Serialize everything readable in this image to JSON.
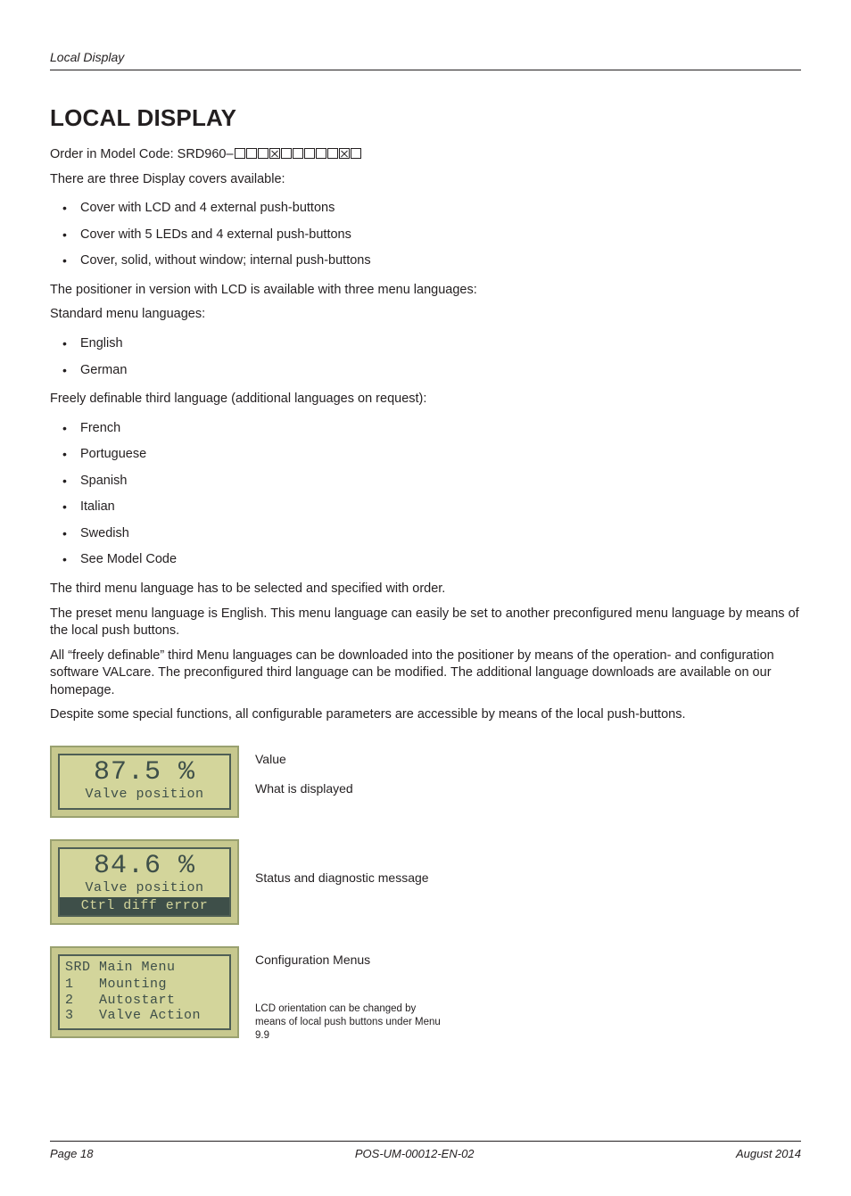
{
  "running_head": "Local Display",
  "title": "LOCAL DISPLAY",
  "order_line_prefix": "Order in Model Code: SRD960–",
  "order_code_pattern": [
    "b",
    "b",
    "b",
    "x",
    "b",
    "b",
    "b",
    "b",
    "b",
    "x",
    "b"
  ],
  "intro_line": "There are three Display covers available:",
  "covers": [
    "Cover with LCD and 4 external push-buttons",
    "Cover with 5 LEDs and 4 external push-buttons",
    "Cover, solid, without window; internal push-buttons"
  ],
  "lcd_langs_intro": "The positioner in version with LCD is available with three menu languages:",
  "std_langs_label": "Standard menu languages:",
  "std_langs": [
    "English",
    "German"
  ],
  "third_lang_label": "Freely definable third language (additional languages on request):",
  "third_langs": [
    "French",
    "Portuguese",
    "Spanish",
    "Italian",
    "Swedish",
    "See Model Code"
  ],
  "para_third_select": "The third menu language has to be selected and specified with order.",
  "para_preset": "The preset menu language is English. This menu language can easily be set to another preconfigured menu language by means of the local push buttons.",
  "para_valcare": "All “freely definable” third Menu languages can be downloaded into the positioner by means of the operation- and configuration software VALcare. The preconfigured third language can be modified. The additional language downloads are available on our homepage.",
  "para_despite": "Despite some special functions, all configurable parameters are accessible by means of the local push-buttons.",
  "lcd1": {
    "value": "87.5 %",
    "label": "Valve position",
    "cap1": "Value",
    "cap2": "What is displayed"
  },
  "lcd2": {
    "value": "84.6 %",
    "label": "Valve position",
    "status": "Ctrl diff error",
    "cap": "Status and diagnostic message"
  },
  "lcd3": {
    "title": "SRD Main Menu",
    "items": [
      {
        "n": "1",
        "label": "Mounting"
      },
      {
        "n": "2",
        "label": "Autostart"
      },
      {
        "n": "3",
        "label": "Valve Action"
      }
    ],
    "cap": "Configuration Menus",
    "note": "LCD orientation can be changed by means of local push buttons under Menu 9.9"
  },
  "lcd_colors": {
    "frame_bg": "#c7c88e",
    "frame_border": "#9aa170",
    "screen_bg": "#d3d59b",
    "screen_border": "#4f5f55",
    "text": "#3e4f49"
  },
  "footer": {
    "left": "Page 18",
    "center": "POS-UM-00012-EN-02",
    "right": "August 2014"
  }
}
